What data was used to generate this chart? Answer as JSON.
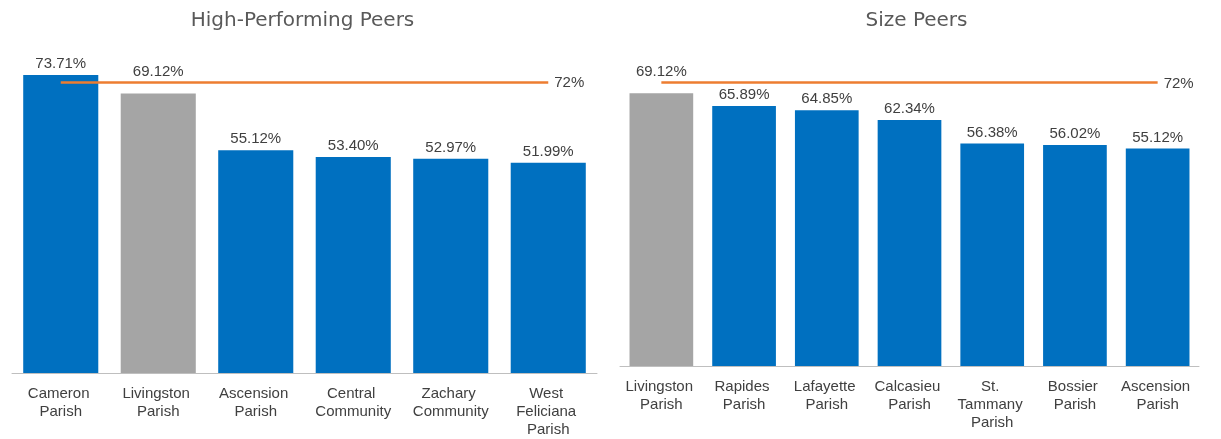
{
  "chart_data": [
    {
      "type": "bar",
      "title": "High-Performing Peers",
      "categories": [
        "Cameron Parish",
        "Livingston Parish",
        "Ascension Parish",
        "Central Community",
        "Zachary Community",
        "West Feliciana Parish"
      ],
      "values": [
        73.71,
        69.12,
        55.12,
        53.4,
        52.97,
        51.99
      ],
      "colors": [
        "#0070c0",
        "#a5a5a5",
        "#0070c0",
        "#0070c0",
        "#0070c0",
        "#0070c0"
      ],
      "value_labels": [
        "73.71%",
        "69.12%",
        "55.12%",
        "53.40%",
        "52.97%",
        "51.99%"
      ],
      "ref_lines": [
        {
          "axis": "y",
          "value": 72,
          "label": "72%",
          "color": "#ed7d31"
        }
      ],
      "tick_labels": "x"
    },
    {
      "type": "bar",
      "title": "Size Peers",
      "categories": [
        "Livingston Parish",
        "Rapides Parish",
        "Lafayette Parish",
        "Calcasieu Parish",
        "St. Tammany Parish",
        "Bossier Parish",
        "Ascension Parish"
      ],
      "values": [
        69.12,
        65.89,
        64.85,
        62.34,
        56.38,
        56.02,
        55.12
      ],
      "colors": [
        "#a5a5a5",
        "#0070c0",
        "#0070c0",
        "#0070c0",
        "#0070c0",
        "#0070c0",
        "#0070c0"
      ],
      "value_labels": [
        "69.12%",
        "65.89%",
        "64.85%",
        "62.34%",
        "56.38%",
        "56.02%",
        "55.12%"
      ],
      "ref_lines": [
        {
          "axis": "y",
          "value": 72,
          "label": "72%",
          "color": "#ed7d31"
        }
      ],
      "tick_labels": "x"
    }
  ]
}
